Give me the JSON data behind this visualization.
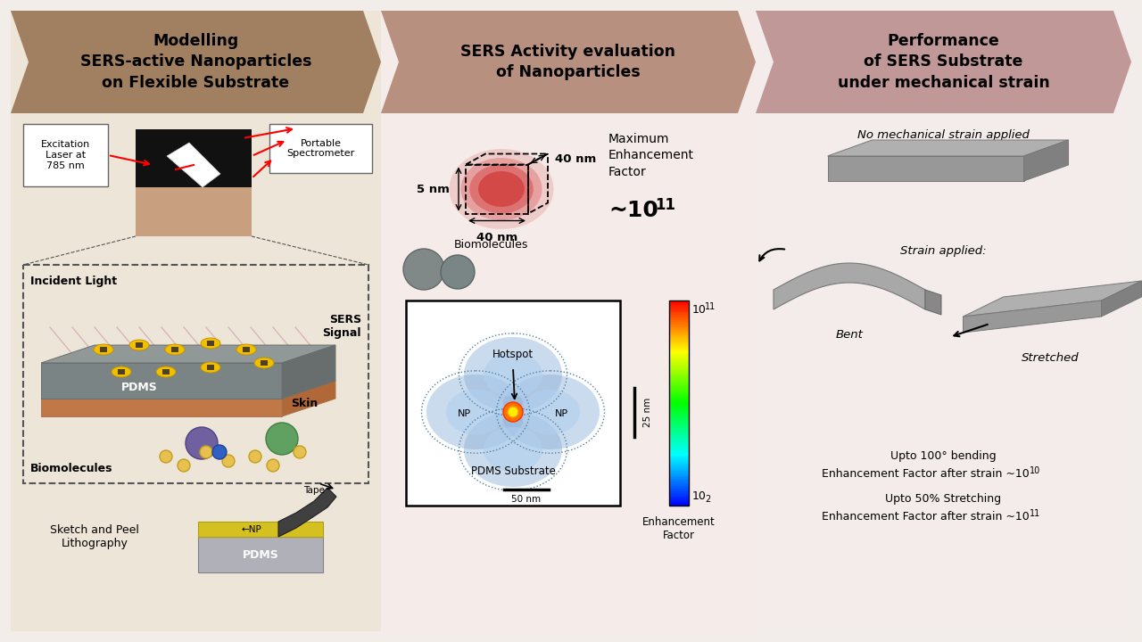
{
  "bg_color": "#f2ede8",
  "panel1": {
    "title": "Modelling\nSERS-active Nanoparticles\non Flexible Substrate",
    "header_color": "#a08060",
    "content_color": "#ede5d8",
    "excitation_label": "Excitation\nLaser at\n785 nm",
    "spectrometer_label": "Portable\nSpectrometer",
    "incident_light": "Incident Light",
    "sers_signal": "SERS\nSignal",
    "pdms": "PDMS",
    "skin": "Skin",
    "biomolecules": "Biomolecules",
    "sketch_label": "Sketch and Peel\nLithography",
    "tape_label": "Tape",
    "np_label": "←NP",
    "pdms_label": "PDMS"
  },
  "panel2": {
    "title": "SERS Activity evaluation\nof Nanoparticles",
    "header_color": "#b89088",
    "content_color": "#f5ebe8",
    "dim1": "5 nm",
    "dim2": "40 nm",
    "dim3": "40 nm",
    "max_ef_label": "Maximum\nEnhancement\nFactor",
    "max_ef_value": "~10",
    "max_ef_exp": "11",
    "biomolecules": "Biomolecules",
    "hotspot": "Hotspot",
    "np_left": "NP",
    "np_right": "NP",
    "pdms_sub": "PDMS Substrate",
    "scale_bar": "50 nm",
    "scale_bar2": "25 nm",
    "colorbar_top": "10",
    "colorbar_top_exp": "11",
    "colorbar_bot": "10",
    "colorbar_bot_exp": "2",
    "ef_label": "Enhancement\nFactor"
  },
  "panel3": {
    "title": "Performance\nof SERS Substrate\nunder mechanical strain",
    "header_color": "#c09898",
    "content_color": "#f5eeee",
    "no_strain": "No mechanical strain applied",
    "strain_applied": "Strain applied:",
    "bent": "Bent",
    "stretched": "Stretched",
    "bending_line1": "Upto 100° bending",
    "bending_line2": "Enhancement Factor after strain ~10",
    "bending_exp": "10",
    "stretching_line1": "Upto 50% Stretching",
    "stretching_line2": "Enhancement Factor after strain ~10",
    "stretching_exp": "11"
  }
}
